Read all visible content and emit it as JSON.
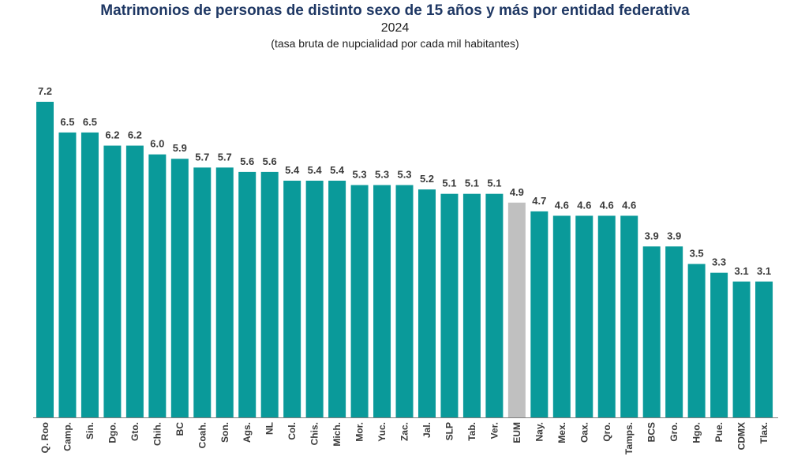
{
  "header": {
    "title": "Matrimonios de personas de distinto sexo de 15 años y más por entidad federativa",
    "year": "2024",
    "subtitle": "(tasa bruta de nupcialidad por cada mil habitantes)"
  },
  "colors": {
    "bar": "#0a9a9a",
    "highlight_bar": "#c0c0c0",
    "label": "#3a3a3a",
    "title": "#1f3864"
  },
  "chart_data": {
    "type": "bar",
    "title": "Matrimonios de personas de distinto sexo de 15 años y más por entidad federativa",
    "subtitle": "2024 (tasa bruta de nupcialidad por cada mil habitantes)",
    "xlabel": "",
    "ylabel": "",
    "ylim": [
      0,
      7.2
    ],
    "grid": false,
    "legend": "none",
    "highlight_category": "EUM",
    "categories": [
      "Q. Roo",
      "Camp.",
      "Sin.",
      "Dgo.",
      "Gto.",
      "Chih.",
      "BC",
      "Coah.",
      "Son.",
      "Ags.",
      "NL",
      "Col.",
      "Chis.",
      "Mich.",
      "Mor.",
      "Yuc.",
      "Zac.",
      "Jal.",
      "SLP",
      "Tab.",
      "Ver.",
      "EUM",
      "Nay.",
      "Mex.",
      "Oax.",
      "Qro.",
      "Tamps.",
      "BCS",
      "Gro.",
      "Hgo.",
      "Pue.",
      "CDMX",
      "Tlax."
    ],
    "values": [
      7.2,
      6.5,
      6.5,
      6.2,
      6.2,
      6.0,
      5.9,
      5.7,
      5.7,
      5.6,
      5.6,
      5.4,
      5.4,
      5.4,
      5.3,
      5.3,
      5.3,
      5.2,
      5.1,
      5.1,
      5.1,
      4.9,
      4.7,
      4.6,
      4.6,
      4.6,
      4.6,
      3.9,
      3.9,
      3.5,
      3.3,
      3.1,
      3.1
    ],
    "value_labels": [
      "7.2",
      "6.5",
      "6.5",
      "6.2",
      "6.2",
      "6.0",
      "5.9",
      "5.7",
      "5.7",
      "5.6",
      "5.6",
      "5.4",
      "5.4",
      "5.4",
      "5.3",
      "5.3",
      "5.3",
      "5.2",
      "5.1",
      "5.1",
      "5.1",
      "4.9",
      "4.7",
      "4.6",
      "4.6",
      "4.6",
      "4.6",
      "3.9",
      "3.9",
      "3.5",
      "3.3",
      "3.1",
      "3.1"
    ]
  }
}
